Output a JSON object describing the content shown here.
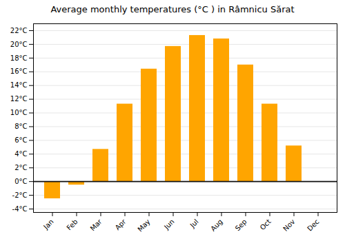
{
  "chart_data": {
    "type": "bar",
    "title": "Average monthly temperatures (°C ) in Râmnicu Sărat",
    "categories": [
      "Jan",
      "Feb",
      "Mar",
      "Apr",
      "May",
      "Jun",
      "Jul",
      "Aug",
      "Sep",
      "Oct",
      "Nov",
      "Dec"
    ],
    "values": [
      -2.5,
      -0.5,
      4.7,
      11.3,
      16.4,
      19.7,
      21.3,
      20.8,
      17.0,
      11.3,
      5.2,
      0.0
    ],
    "color": "#FFA500",
    "ylim": [
      -4.5,
      23
    ],
    "yticks": [
      {
        "value": -4,
        "label": "-4°C"
      },
      {
        "value": -2,
        "label": "-2°C"
      },
      {
        "value": 0,
        "label": "0°C"
      },
      {
        "value": 2,
        "label": "2°C"
      },
      {
        "value": 4,
        "label": "4°C"
      },
      {
        "value": 6,
        "label": "6°C"
      },
      {
        "value": 8,
        "label": "8°C"
      },
      {
        "value": 10,
        "label": "10°C"
      },
      {
        "value": 12,
        "label": "12°C"
      },
      {
        "value": 14,
        "label": "14°C"
      },
      {
        "value": 16,
        "label": "16°C"
      },
      {
        "value": 18,
        "label": "18°C"
      },
      {
        "value": 20,
        "label": "20°C"
      },
      {
        "value": 22,
        "label": "22°C"
      }
    ],
    "grid": true
  }
}
